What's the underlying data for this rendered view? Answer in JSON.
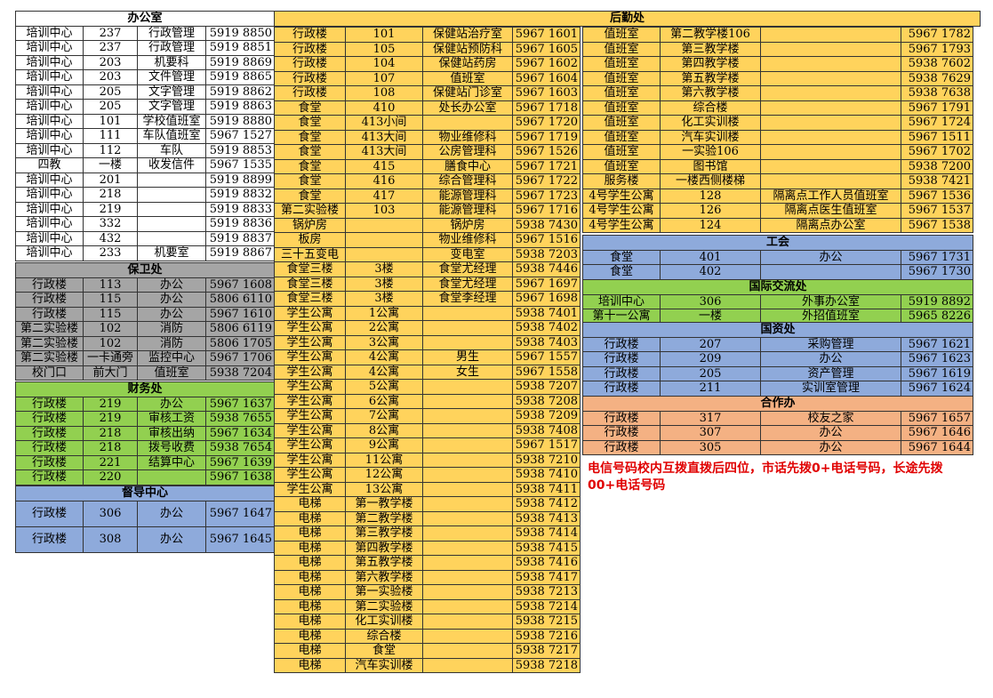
{
  "colors": {
    "office": "#ffffff",
    "logistics": "#ffd35c",
    "security": "#a5a5a5",
    "finance": "#92d050",
    "supervision": "#8eaadb",
    "union": "#8eaadb",
    "intl": "#92d050",
    "assets": "#8eaadb",
    "coop": "#f4b183",
    "note": "#e00000"
  },
  "office": {
    "title": "办公室",
    "rows": [
      [
        "培训中心",
        "237",
        "行政管理",
        "5919 8850"
      ],
      [
        "培训中心",
        "237",
        "行政管理",
        "5919 8851"
      ],
      [
        "培训中心",
        "203",
        "机要科",
        "5919 8869"
      ],
      [
        "培训中心",
        "203",
        "文件管理",
        "5919 8865"
      ],
      [
        "培训中心",
        "205",
        "文字管理",
        "5919 8862"
      ],
      [
        "培训中心",
        "205",
        "文字管理",
        "5919 8863"
      ],
      [
        "培训中心",
        "101",
        "学校值班室",
        "5919 8880"
      ],
      [
        "培训中心",
        "111",
        "车队值班室",
        "5967 1527"
      ],
      [
        "培训中心",
        "112",
        "车队",
        "5919 8853"
      ],
      [
        "四教",
        "一楼",
        "收发信件",
        "5967 1535"
      ],
      [
        "培训中心",
        "201",
        "",
        "5919 8899"
      ],
      [
        "培训中心",
        "218",
        "",
        "5919 8832"
      ],
      [
        "培训中心",
        "219",
        "",
        "5919 8833"
      ],
      [
        "培训中心",
        "332",
        "",
        "5919 8836"
      ],
      [
        "培训中心",
        "432",
        "",
        "5919 8837"
      ],
      [
        "培训中心",
        "233",
        "机要室",
        "5919 8867"
      ]
    ]
  },
  "security": {
    "title": "保卫处",
    "rows": [
      [
        "行政楼",
        "113",
        "办公",
        "5967 1608"
      ],
      [
        "行政楼",
        "115",
        "办公",
        "5806 6110"
      ],
      [
        "行政楼",
        "115",
        "办公",
        "5967 1610"
      ],
      [
        "第二实验楼",
        "102",
        "消防",
        "5806 6119"
      ],
      [
        "第二实验楼",
        "102",
        "消防",
        "5806 1705"
      ],
      [
        "第二实验楼",
        "一卡通旁",
        "监控中心",
        "5967 1706"
      ],
      [
        "校门口",
        "前大门",
        "值班室",
        "5938 7204"
      ]
    ]
  },
  "finance": {
    "title": "财务处",
    "rows": [
      [
        "行政楼",
        "219",
        "办公",
        "5967 1637"
      ],
      [
        "行政楼",
        "219",
        "审核工资",
        "5938 7655"
      ],
      [
        "行政楼",
        "218",
        "审核出纳",
        "5967 1634"
      ],
      [
        "行政楼",
        "218",
        "拨号收费",
        "5938 7654"
      ],
      [
        "行政楼",
        "221",
        "结算中心",
        "5967 1639"
      ],
      [
        "行政楼",
        "220",
        "",
        "5967 1638"
      ]
    ]
  },
  "supervision": {
    "title": "督导中心",
    "rows": [
      [
        "行政楼",
        "306",
        "办公",
        "5967 1647"
      ],
      [
        "行政楼",
        "308",
        "办公",
        "5967 1645"
      ]
    ]
  },
  "logistics": {
    "title": "后勤处",
    "col1": [
      [
        "行政楼",
        "101",
        "保健站治疗室",
        "5967 1601"
      ],
      [
        "行政楼",
        "105",
        "保健站预防科",
        "5967 1605"
      ],
      [
        "行政楼",
        "104",
        "保健站药房",
        "5967 1602"
      ],
      [
        "行政楼",
        "107",
        "值班室",
        "5967 1604"
      ],
      [
        "行政楼",
        "108",
        "保健站门诊室",
        "5967 1603"
      ],
      [
        "食堂",
        "410",
        "处长办公室",
        "5967 1718"
      ],
      [
        "食堂",
        "413小间",
        "",
        "5967 1720"
      ],
      [
        "食堂",
        "413大间",
        "物业维修科",
        "5967 1719"
      ],
      [
        "食堂",
        "413大间",
        "公房管理科",
        "5967 1526"
      ],
      [
        "食堂",
        "415",
        "膳食中心",
        "5967 1721"
      ],
      [
        "食堂",
        "416",
        "综合管理科",
        "5967 1722"
      ],
      [
        "食堂",
        "417",
        "能源管理科",
        "5967 1723"
      ],
      [
        "第二实验楼",
        "103",
        "能源管理科",
        "5967 1716"
      ],
      [
        "锅炉房",
        "",
        "锅炉房",
        "5938 7430"
      ],
      [
        "板房",
        "",
        "物业维修科",
        "5967 1516"
      ],
      [
        "三十五变电",
        "",
        "变电室",
        "5938 7203"
      ],
      [
        "食堂三楼",
        "3楼",
        "食堂尤经理",
        "5938 7446"
      ],
      [
        "食堂三楼",
        "3楼",
        "食堂尤经理",
        "5967 1697"
      ],
      [
        "食堂三楼",
        "3楼",
        "食堂李经理",
        "5967 1698"
      ],
      [
        "学生公寓",
        "1公寓",
        "",
        "5938 7401"
      ],
      [
        "学生公寓",
        "2公寓",
        "",
        "5938 7402"
      ],
      [
        "学生公寓",
        "3公寓",
        "",
        "5938 7403"
      ],
      [
        "学生公寓",
        "4公寓",
        "男生",
        "5967 1557"
      ],
      [
        "学生公寓",
        "4公寓",
        "女生",
        "5967 1558"
      ],
      [
        "学生公寓",
        "5公寓",
        "",
        "5938 7207"
      ],
      [
        "学生公寓",
        "6公寓",
        "",
        "5938 7208"
      ],
      [
        "学生公寓",
        "7公寓",
        "",
        "5938 7209"
      ],
      [
        "学生公寓",
        "8公寓",
        "",
        "5938 7408"
      ],
      [
        "学生公寓",
        "9公寓",
        "",
        "5967 1517"
      ],
      [
        "学生公寓",
        "11公寓",
        "",
        "5938 7210"
      ],
      [
        "学生公寓",
        "12公寓",
        "",
        "5938 7410"
      ],
      [
        "学生公寓",
        "13公寓",
        "",
        "5938 7411"
      ],
      [
        "电梯",
        "第一教学楼",
        "",
        "5938 7412"
      ],
      [
        "电梯",
        "第二教学楼",
        "",
        "5938 7413"
      ],
      [
        "电梯",
        "第三教学楼",
        "",
        "5938 7414"
      ],
      [
        "电梯",
        "第四教学楼",
        "",
        "5938 7415"
      ],
      [
        "电梯",
        "第五教学楼",
        "",
        "5938 7416"
      ],
      [
        "电梯",
        "第六教学楼",
        "",
        "5938 7417"
      ],
      [
        "电梯",
        "第一实验楼",
        "",
        "5938 7213"
      ],
      [
        "电梯",
        "第二实验楼",
        "",
        "5938 7214"
      ],
      [
        "电梯",
        "化工实训楼",
        "",
        "5938 7215"
      ],
      [
        "电梯",
        "综合楼",
        "",
        "5938 7216"
      ],
      [
        "电梯",
        "食堂",
        "",
        "5938 7217"
      ],
      [
        "电梯",
        "汽车实训楼",
        "",
        "5938 7218"
      ]
    ],
    "col2": [
      [
        "值班室",
        "第二教学楼106",
        "",
        "5967 1782"
      ],
      [
        "值班室",
        "第三教学楼",
        "",
        "5967 1793"
      ],
      [
        "值班室",
        "第四教学楼",
        "",
        "5938 7602"
      ],
      [
        "值班室",
        "第五教学楼",
        "",
        "5938 7629"
      ],
      [
        "值班室",
        "第六教学楼",
        "",
        "5938 7638"
      ],
      [
        "值班室",
        "综合楼",
        "",
        "5967 1791"
      ],
      [
        "值班室",
        "化工实训楼",
        "",
        "5967 1724"
      ],
      [
        "值班室",
        "汽车实训楼",
        "",
        "5967 1511"
      ],
      [
        "值班室",
        "一实验106",
        "",
        "5967 1702"
      ],
      [
        "值班室",
        "图书馆",
        "",
        "5938 7200"
      ],
      [
        "服务楼",
        "一楼西侧楼梯",
        "",
        "5938 7421"
      ],
      [
        "4号学生公寓",
        "128",
        "隔离点工作人员值班室",
        "5967 1536"
      ],
      [
        "4号学生公寓",
        "126",
        "隔离点医生值班室",
        "5967 1537"
      ],
      [
        "4号学生公寓",
        "124",
        "隔离点办公室",
        "5967 1538"
      ]
    ]
  },
  "union": {
    "title": "工会",
    "rows": [
      [
        "食堂",
        "401",
        "办公",
        "5967 1731"
      ],
      [
        "食堂",
        "402",
        "",
        "5967 1730"
      ]
    ]
  },
  "intl": {
    "title": "国际交流处",
    "rows": [
      [
        "培训中心",
        "306",
        "外事办公室",
        "5919 8892"
      ],
      [
        "第十一公寓",
        "一楼",
        "外招值班室",
        "5965 8226"
      ]
    ]
  },
  "assets": {
    "title": "国资处",
    "rows": [
      [
        "行政楼",
        "207",
        "采购管理",
        "5967 1621"
      ],
      [
        "行政楼",
        "209",
        "办公",
        "5967 1623"
      ],
      [
        "行政楼",
        "205",
        "资产管理",
        "5967 1619"
      ],
      [
        "行政楼",
        "211",
        "实训室管理",
        "5967 1624"
      ]
    ]
  },
  "coop": {
    "title": "合作办",
    "rows": [
      [
        "行政楼",
        "317",
        "校友之家",
        "5967 1657"
      ],
      [
        "行政楼",
        "307",
        "办公",
        "5967 1646"
      ],
      [
        "行政楼",
        "305",
        "办公",
        "5967 1644"
      ]
    ]
  },
  "note": "电信号码校内互拨直拨后四位，市话先拨0+电话号码，长途先拨00+电话号码"
}
